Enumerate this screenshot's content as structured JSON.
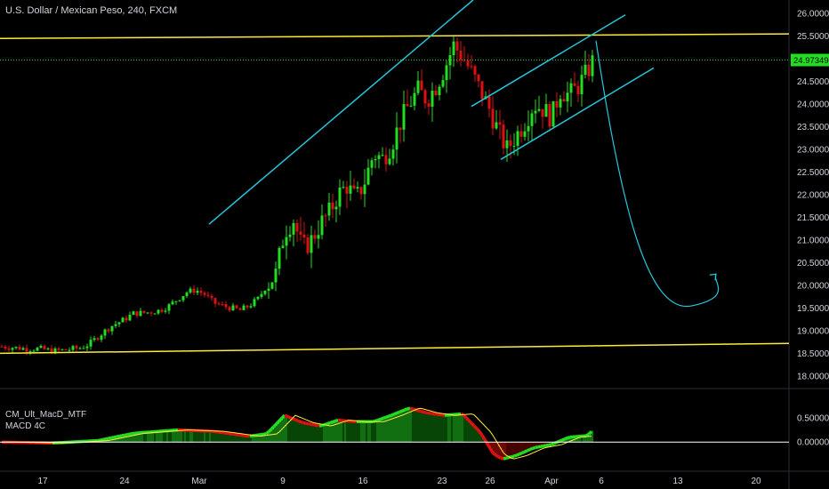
{
  "title": "U.S. Dollar / Mexican Peso, 240, FXCM",
  "indicator": {
    "name": "CM_Ult_MacD_MTF",
    "subtitle": "MACD 4C",
    "y_ticks": [
      "0.50000",
      "0.00000"
    ]
  },
  "price_label": "24.97349",
  "colors": {
    "up": "#22dd22",
    "down": "#dd1111",
    "channel": "#26c6da",
    "level": "#ffeb3b",
    "macd_line": "#ffeb3b",
    "zero_line": "#ffffff",
    "last_price": "#22dd22"
  },
  "chart_data": [
    {
      "type": "candlestick",
      "title": "U.S. Dollar / Mexican Peso, 240, FXCM",
      "ylim": [
        17.9,
        26.2
      ],
      "y_ticks": [
        "26.00000",
        "25.50000",
        "25.00000",
        "24.50000",
        "24.00000",
        "23.50000",
        "23.00000",
        "22.50000",
        "22.00000",
        "21.50000",
        "21.00000",
        "20.50000",
        "20.00000",
        "19.50000",
        "19.00000",
        "18.50000",
        "18.00000"
      ],
      "x_ticks": [
        "17",
        "24",
        "Mar",
        "9",
        "16",
        "23",
        "26",
        "Apr",
        "6",
        "13",
        "20"
      ],
      "last_price": 24.97349,
      "path_closes": [
        [
          0,
          18.65
        ],
        [
          15,
          18.63
        ],
        [
          30,
          18.6
        ],
        [
          45,
          18.6
        ],
        [
          60,
          18.55
        ],
        [
          75,
          18.58
        ],
        [
          90,
          18.62
        ],
        [
          100,
          18.7
        ],
        [
          115,
          18.95
        ],
        [
          125,
          19.1
        ],
        [
          140,
          19.25
        ],
        [
          150,
          19.38
        ],
        [
          165,
          19.4
        ],
        [
          180,
          19.45
        ],
        [
          190,
          19.55
        ],
        [
          200,
          19.7
        ],
        [
          210,
          19.85
        ],
        [
          220,
          19.9
        ],
        [
          230,
          19.8
        ],
        [
          240,
          19.62
        ],
        [
          250,
          19.55
        ],
        [
          260,
          19.5
        ],
        [
          270,
          19.45
        ],
        [
          280,
          19.55
        ],
        [
          290,
          19.7
        ],
        [
          300,
          20.0
        ],
        [
          310,
          20.25
        ],
        [
          320,
          21.2
        ],
        [
          330,
          21.45
        ],
        [
          340,
          20.8
        ],
        [
          350,
          21.0
        ],
        [
          360,
          21.35
        ],
        [
          370,
          21.6
        ],
        [
          380,
          22.0
        ],
        [
          390,
          22.2
        ],
        [
          400,
          21.9
        ],
        [
          410,
          22.3
        ],
        [
          420,
          22.9
        ],
        [
          430,
          22.8
        ],
        [
          440,
          23.1
        ],
        [
          450,
          23.6
        ],
        [
          460,
          24.0
        ],
        [
          470,
          24.3
        ],
        [
          480,
          24.1
        ],
        [
          490,
          24.4
        ],
        [
          500,
          24.8
        ],
        [
          510,
          25.3
        ],
        [
          520,
          25.05
        ],
        [
          530,
          24.7
        ],
        [
          540,
          24.3
        ],
        [
          550,
          23.9
        ],
        [
          560,
          23.4
        ],
        [
          570,
          23.0
        ],
        [
          580,
          23.3
        ],
        [
          590,
          23.6
        ],
        [
          600,
          24.0
        ],
        [
          610,
          23.9
        ],
        [
          620,
          23.7
        ],
        [
          630,
          24.3
        ],
        [
          640,
          24.2
        ],
        [
          650,
          24.4
        ],
        [
          660,
          24.7
        ],
        [
          667,
          24.97
        ]
      ],
      "drawings": {
        "horizontal_top": [
          25.45,
          25.55
        ],
        "horizontal_bottom": [
          18.5,
          18.72
        ],
        "rising_channel_left": {
          "from": [
            "Feb 26",
            21.35
          ],
          "to": [
            "Mar 23",
            26.3
          ]
        },
        "channel_upper": {
          "from": [
            23.95
          ],
          "to": [
            25.97
          ]
        },
        "channel_lower": {
          "from": [
            22.78
          ],
          "to": [
            24.8
          ]
        },
        "projection": {
          "start": 25.4,
          "low": 19.55,
          "end_arrow": 20.25
        }
      }
    },
    {
      "type": "bar",
      "title": "CM_Ult_MacD_MTF",
      "subtitle": "MACD 4C",
      "ylim": [
        -0.6,
        0.9
      ],
      "y_ticks": [
        "0.50000",
        "0.00000"
      ],
      "histogram_envelope": [
        [
          0,
          0.0
        ],
        [
          60,
          -0.02
        ],
        [
          110,
          0.03
        ],
        [
          150,
          0.18
        ],
        [
          200,
          0.25
        ],
        [
          240,
          0.22
        ],
        [
          280,
          0.12
        ],
        [
          300,
          0.17
        ],
        [
          320,
          0.55
        ],
        [
          340,
          0.4
        ],
        [
          360,
          0.33
        ],
        [
          380,
          0.45
        ],
        [
          400,
          0.42
        ],
        [
          420,
          0.42
        ],
        [
          440,
          0.55
        ],
        [
          460,
          0.7
        ],
        [
          480,
          0.6
        ],
        [
          500,
          0.55
        ],
        [
          520,
          0.58
        ],
        [
          540,
          0.2
        ],
        [
          555,
          -0.25
        ],
        [
          565,
          -0.35
        ],
        [
          580,
          -0.28
        ],
        [
          600,
          -0.12
        ],
        [
          620,
          -0.05
        ],
        [
          640,
          0.1
        ],
        [
          660,
          0.13
        ],
        [
          667,
          0.25
        ]
      ]
    }
  ]
}
